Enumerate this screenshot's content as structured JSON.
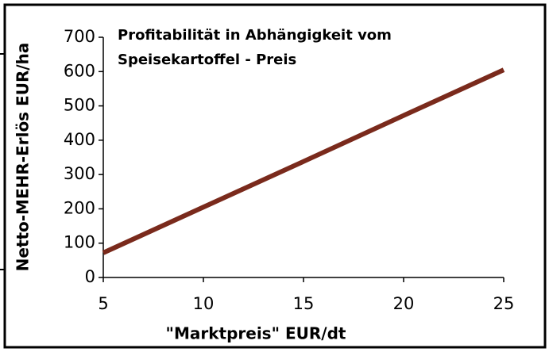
{
  "chart_data": {
    "type": "line",
    "title": [
      "Profitabilität in Abhängigkeit vom",
      "Speisekartoffel - Preis"
    ],
    "x_label": "\"Marktpreis\" EUR/dt",
    "y_label": "Netto-MEHR-Erlös EUR/ha",
    "x": [
      5,
      10,
      15,
      20,
      25
    ],
    "series": [
      {
        "name": null,
        "color": "#7a2a1c",
        "values": [
          72,
          205,
          338,
          472,
          605
        ]
      }
    ],
    "xlim": [
      5,
      25
    ],
    "xticks": [
      5,
      10,
      15,
      20,
      25
    ],
    "ylim": [
      0,
      700
    ],
    "yticks": [
      0,
      100,
      200,
      300,
      400,
      500,
      600,
      700
    ],
    "grid": false
  }
}
